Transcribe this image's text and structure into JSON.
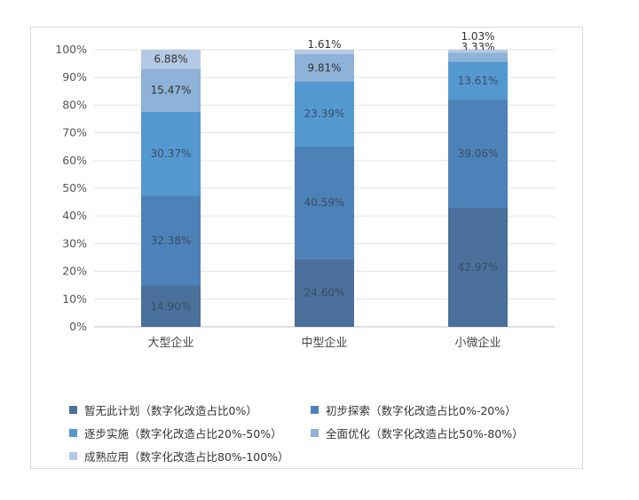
{
  "chart_data": {
    "type": "bar",
    "stacked": true,
    "categories": [
      "大型企业",
      "中型企业",
      "小微企业"
    ],
    "y_ticks": [
      "0%",
      "10%",
      "20%",
      "30%",
      "40%",
      "50%",
      "60%",
      "70%",
      "80%",
      "90%",
      "100%"
    ],
    "ylim": [
      0,
      100
    ],
    "grid": true,
    "legend_position": "bottom",
    "series": [
      {
        "name": "暂无此计划（数字化改造占比0%）",
        "color": "#4a709b",
        "values": [
          14.9,
          24.6,
          42.97
        ],
        "labels": [
          "14.90%",
          "24.60%",
          "42.97%"
        ]
      },
      {
        "name": "初步探索（数字化改造占比0%-20%）",
        "color": "#4d82b8",
        "values": [
          32.38,
          40.59,
          39.06
        ],
        "labels": [
          "32.38%",
          "40.59%",
          "39.06%"
        ]
      },
      {
        "name": "逐步实施（数字化改造占比20%-50%）",
        "color": "#5498d0",
        "values": [
          30.37,
          23.39,
          13.61
        ],
        "labels": [
          "30.37%",
          "23.39%",
          "13.61%"
        ]
      },
      {
        "name": "全面优化（数字化改造占比50%-80%）",
        "color": "#8eb2d8",
        "values": [
          15.47,
          9.81,
          3.33
        ],
        "labels": [
          "15.47%",
          "9.81%",
          "3.33%"
        ]
      },
      {
        "name": "成熟应用（数字化改造占比80%-100%）",
        "color": "#b4c9e4",
        "values": [
          6.88,
          1.61,
          1.03
        ],
        "labels": [
          "6.88%",
          "1.61%",
          "1.03%"
        ]
      }
    ]
  }
}
